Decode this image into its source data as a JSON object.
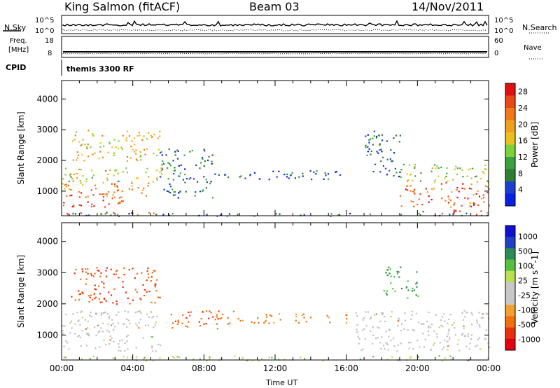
{
  "header": {
    "station": "King Salmon (fitACF)",
    "beam": "Beam 03",
    "date": "14/Nov/2011"
  },
  "top_panels": {
    "nsky_label": "N.Sky",
    "nsearch_label": "N.Search",
    "noise_ticks_left": [
      "10^5",
      "10^0"
    ],
    "noise_ticks_right": [
      "10^5",
      "10^0"
    ],
    "freq_label": "Freq.",
    "freq_unit": "[MHz]",
    "freq_ticks": [
      "18",
      "8"
    ],
    "nave_label": "Nave",
    "nave_ticks": [
      "60",
      "0"
    ],
    "cpid_label": "CPID",
    "cpid_value": "themis 3300 RF"
  },
  "colors": {
    "power_scale": [
      "#0a1fe0",
      "#1c3fd1",
      "#2e7d32",
      "#3aa040",
      "#7bd33a",
      "#e8c020",
      "#f0a020",
      "#f07a18",
      "#e84818",
      "#e01010"
    ],
    "velocity_scale": [
      "#1010d0",
      "#2040c0",
      "#2e8b57",
      "#58c040",
      "#b8e050",
      "#c8c8c8",
      "#c8c8c8",
      "#f0a030",
      "#f07010",
      "#e83010",
      "#e00010"
    ],
    "ground_scatter": "#c0c0c0"
  },
  "chart_data": [
    {
      "type": "heatmap",
      "title": "",
      "ylabel": "Slant Range [km]",
      "xlabel": "",
      "x_ticks": [
        "00:00",
        "04:00",
        "08:00",
        "12:00",
        "16:00",
        "20:00",
        "00:00"
      ],
      "y_ticks": [
        1000,
        2000,
        3000,
        4000
      ],
      "xlim_hours": [
        0,
        24
      ],
      "ylim_km": [
        200,
        4600
      ],
      "colorbar": {
        "label": "Power [dB]",
        "ticks": [
          4,
          8,
          12,
          16,
          20,
          24,
          28
        ],
        "range": [
          0,
          30
        ],
        "position": "right"
      },
      "regions": [
        {
          "t": [
            0.0,
            5.8
          ],
          "r": [
            250,
            350
          ],
          "v": 27
        },
        {
          "t": [
            0.0,
            3.5
          ],
          "r": [
            500,
            1000
          ],
          "v": 25
        },
        {
          "t": [
            0.0,
            5.0
          ],
          "r": [
            800,
            1300
          ],
          "v": 22
        },
        {
          "t": [
            0.0,
            5.8
          ],
          "r": [
            1300,
            1800
          ],
          "v": 15
        },
        {
          "t": [
            0.5,
            5.5
          ],
          "r": [
            2000,
            3000
          ],
          "v": 18
        },
        {
          "t": [
            5.5,
            8.5
          ],
          "r": [
            800,
            2400
          ],
          "v": 7
        },
        {
          "t": [
            8.5,
            16.0
          ],
          "r": [
            1400,
            1700
          ],
          "v": 5
        },
        {
          "t": [
            17.0,
            19.0
          ],
          "r": [
            1500,
            3000
          ],
          "v": 6
        },
        {
          "t": [
            19.0,
            24.0
          ],
          "r": [
            500,
            1300
          ],
          "v": 24
        },
        {
          "t": [
            19.0,
            24.0
          ],
          "r": [
            1300,
            1900
          ],
          "v": 14
        },
        {
          "t": [
            20.0,
            24.0
          ],
          "r": [
            250,
            400
          ],
          "v": 27
        },
        {
          "t": [
            0.0,
            24.0
          ],
          "r": [
            200,
            300
          ],
          "v": 6
        }
      ]
    },
    {
      "type": "heatmap",
      "title": "",
      "ylabel": "Slant Range [km]",
      "xlabel": "Time UT",
      "x_ticks": [
        "00:00",
        "04:00",
        "08:00",
        "12:00",
        "16:00",
        "20:00",
        "00:00"
      ],
      "y_ticks": [
        1000,
        2000,
        3000,
        4000
      ],
      "xlim_hours": [
        0,
        24
      ],
      "ylim_km": [
        200,
        4600
      ],
      "colorbar": {
        "label": "Velocity [m s^-1]",
        "tick_labels": [
          "1000",
          "500",
          "100",
          "25",
          "-25",
          "-100",
          "-500",
          "-1000"
        ],
        "range": [
          -1000,
          1000
        ],
        "position": "right"
      },
      "regions": [
        {
          "t": [
            0.0,
            5.5
          ],
          "r": [
            500,
            1800
          ],
          "v": 0,
          "ground": true
        },
        {
          "t": [
            0.5,
            5.5
          ],
          "r": [
            2000,
            3200
          ],
          "v": -200
        },
        {
          "t": [
            6.0,
            10.0
          ],
          "r": [
            1200,
            1800
          ],
          "v": -150
        },
        {
          "t": [
            10.0,
            16.0
          ],
          "r": [
            1400,
            1700
          ],
          "v": -80
        },
        {
          "t": [
            16.5,
            24.0
          ],
          "r": [
            500,
            1800
          ],
          "v": 0,
          "ground": true
        },
        {
          "t": [
            18.0,
            20.0
          ],
          "r": [
            2200,
            3200
          ],
          "v": 120
        },
        {
          "t": [
            0.0,
            24.0
          ],
          "r": [
            200,
            350
          ],
          "v": 40
        }
      ]
    }
  ]
}
